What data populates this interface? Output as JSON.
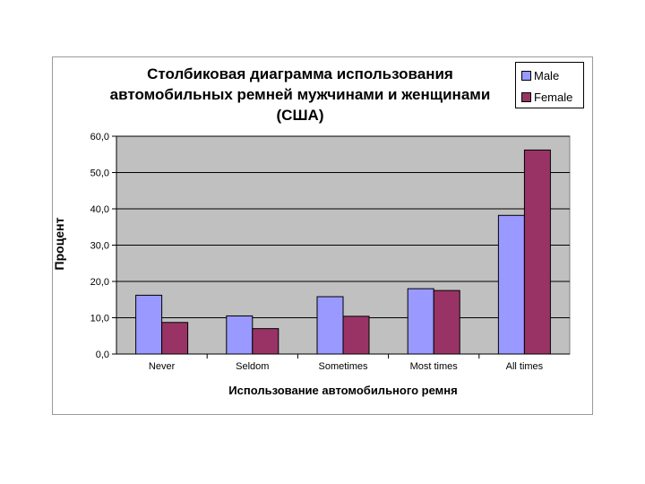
{
  "chart_data": {
    "type": "bar",
    "title_lines": [
      "Столбиковая диаграмма использования",
      "автомобильных ремней  мужчинами и женщинами",
      "(США)"
    ],
    "xlabel": "Использование автомобильного ремня",
    "ylabel": "Процент",
    "categories": [
      "Never",
      "Seldom",
      "Sometimes",
      "Most times",
      "All times"
    ],
    "series": [
      {
        "name": "Male",
        "values": [
          16.2,
          10.5,
          15.8,
          18.0,
          38.2
        ],
        "color": "#9999ff"
      },
      {
        "name": "Female",
        "values": [
          8.7,
          7.0,
          10.4,
          17.5,
          56.2
        ],
        "color": "#993366"
      }
    ],
    "ylim": [
      0,
      60
    ],
    "yticks": [
      "0,0",
      "10,0",
      "20,0",
      "30,0",
      "40,0",
      "50,0",
      "60,0"
    ],
    "plot_background": "#c0c0c0",
    "grid": true,
    "legend_position": "top-right"
  }
}
